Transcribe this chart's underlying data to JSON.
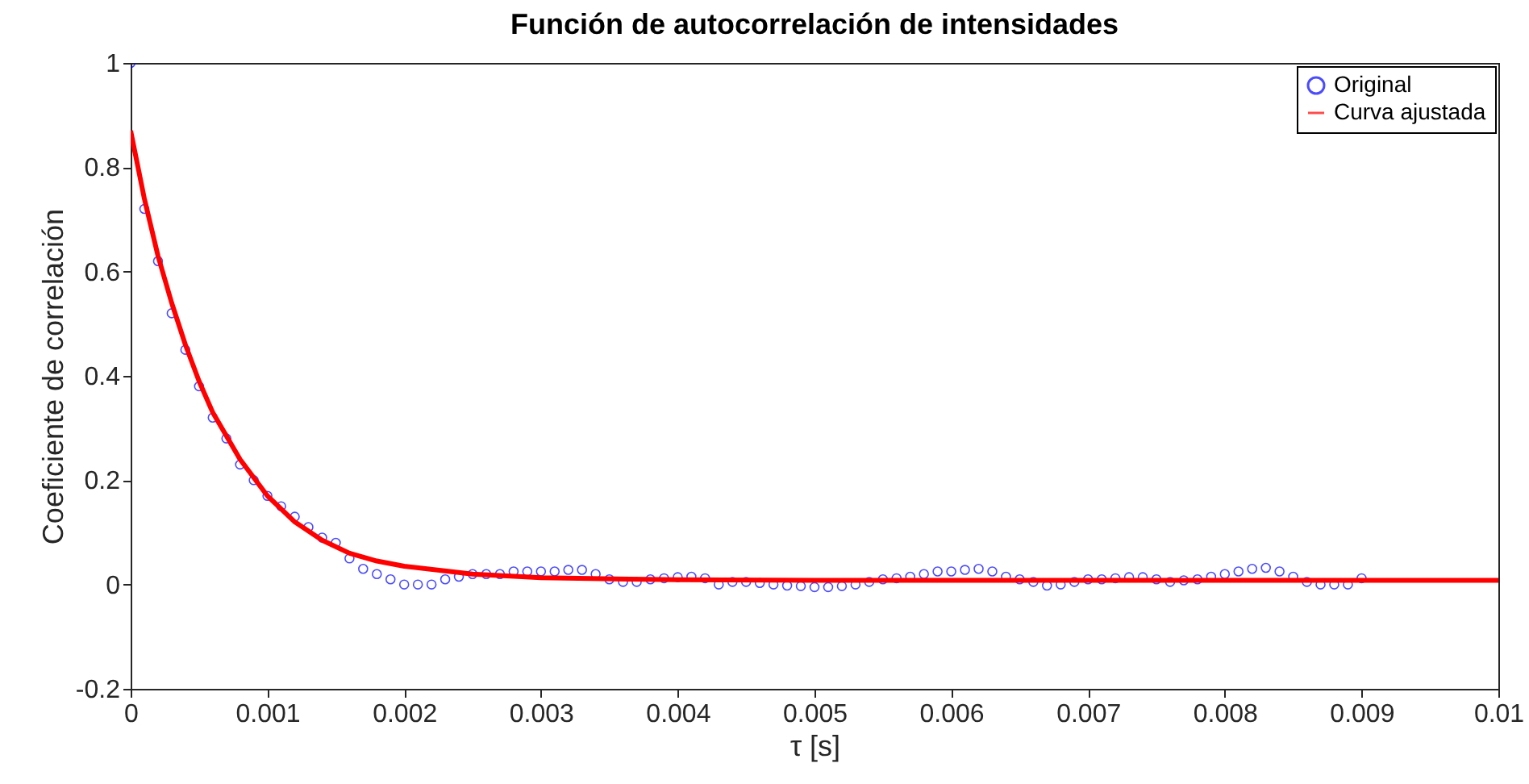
{
  "chart_data": {
    "type": "scatter",
    "title": "Función de autocorrelación de intensidades",
    "xlabel": "τ [s]",
    "ylabel": "Coeficiente de correlación",
    "xlim": [
      0,
      0.01
    ],
    "ylim": [
      -0.2,
      1
    ],
    "xticks": [
      0,
      0.001,
      0.002,
      0.003,
      0.004,
      0.005,
      0.006,
      0.007,
      0.008,
      0.009,
      0.01
    ],
    "yticks": [
      -0.2,
      0,
      0.2,
      0.4,
      0.6,
      0.8,
      1
    ],
    "legend": "top right",
    "grid": false,
    "series": [
      {
        "name": "Original",
        "marker": "circle",
        "color": "#0000ff",
        "x": [
          0,
          0.0001,
          0.0002,
          0.0003,
          0.0004,
          0.0005,
          0.0006,
          0.0007,
          0.0008,
          0.0009,
          0.001,
          0.0011,
          0.0012,
          0.0013,
          0.0014,
          0.0015,
          0.0016,
          0.0017,
          0.0018,
          0.0019,
          0.002,
          0.0021,
          0.0022,
          0.0023,
          0.0024,
          0.0025,
          0.0026,
          0.0027,
          0.0028,
          0.0029,
          0.003,
          0.0031,
          0.0032,
          0.0033,
          0.0034,
          0.0035,
          0.0036,
          0.0037,
          0.0038,
          0.0039,
          0.004,
          0.0041,
          0.0042,
          0.0043,
          0.0044,
          0.0045,
          0.0046,
          0.0047,
          0.0048,
          0.0049,
          0.005,
          0.0051,
          0.0052,
          0.0053,
          0.0054,
          0.0055,
          0.0056,
          0.0057,
          0.0058,
          0.0059,
          0.006,
          0.0061,
          0.0062,
          0.0063,
          0.0064,
          0.0065,
          0.0066,
          0.0067,
          0.0068,
          0.0069,
          0.007,
          0.0071,
          0.0072,
          0.0073,
          0.0074,
          0.0075,
          0.0076,
          0.0077,
          0.0078,
          0.0079,
          0.008,
          0.0081,
          0.0082,
          0.0083,
          0.0084,
          0.0085,
          0.0086,
          0.0087,
          0.0088,
          0.0089,
          0.009
        ],
        "values": [
          1.0,
          0.72,
          0.62,
          0.52,
          0.45,
          0.38,
          0.32,
          0.28,
          0.23,
          0.2,
          0.17,
          0.15,
          0.13,
          0.11,
          0.09,
          0.08,
          0.05,
          0.03,
          0.02,
          0.01,
          0.0,
          0.0,
          0.0,
          0.01,
          0.015,
          0.02,
          0.02,
          0.02,
          0.025,
          0.025,
          0.025,
          0.025,
          0.028,
          0.028,
          0.02,
          0.01,
          0.005,
          0.005,
          0.01,
          0.012,
          0.014,
          0.015,
          0.012,
          0.0,
          0.005,
          0.005,
          0.003,
          0.0,
          -0.002,
          -0.003,
          -0.005,
          -0.005,
          -0.003,
          0.0,
          0.005,
          0.01,
          0.012,
          0.015,
          0.02,
          0.025,
          0.025,
          0.028,
          0.03,
          0.025,
          0.015,
          0.01,
          0.005,
          -0.002,
          0.0,
          0.005,
          0.01,
          0.01,
          0.012,
          0.014,
          0.014,
          0.01,
          0.005,
          0.008,
          0.01,
          0.015,
          0.02,
          0.025,
          0.03,
          0.032,
          0.025,
          0.015,
          0.005,
          0.0,
          0.0,
          0.0,
          0.012
        ]
      },
      {
        "name": "Curva ajustada",
        "type": "line",
        "marker": "none",
        "line_style": "solid",
        "color": "#ff0000",
        "x": [
          0,
          0.0001,
          0.0002,
          0.0003,
          0.0004,
          0.0005,
          0.0006,
          0.0008,
          0.001,
          0.0012,
          0.0014,
          0.0016,
          0.0018,
          0.002,
          0.0025,
          0.003,
          0.004,
          0.005,
          0.007,
          0.01
        ],
        "values": [
          0.87,
          0.74,
          0.63,
          0.54,
          0.46,
          0.39,
          0.33,
          0.24,
          0.17,
          0.12,
          0.085,
          0.06,
          0.045,
          0.035,
          0.02,
          0.013,
          0.009,
          0.008,
          0.008,
          0.008
        ]
      }
    ]
  }
}
